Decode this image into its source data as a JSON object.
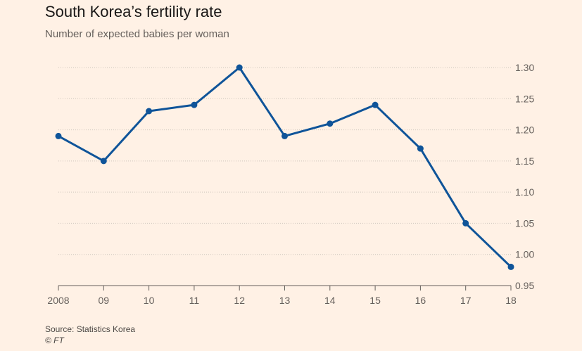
{
  "chart_data": {
    "type": "line",
    "title": "South Korea’s fertility rate",
    "subtitle": "Number of expected babies per woman",
    "categories": [
      "2008",
      "09",
      "10",
      "11",
      "12",
      "13",
      "14",
      "15",
      "16",
      "17",
      "18"
    ],
    "series": [
      {
        "name": "Fertility rate",
        "values": [
          1.19,
          1.15,
          1.23,
          1.24,
          1.3,
          1.19,
          1.21,
          1.24,
          1.17,
          1.05,
          0.98
        ]
      }
    ],
    "yticks": [
      "0.95",
      "1.00",
      "1.05",
      "1.10",
      "1.15",
      "1.20",
      "1.25",
      "1.30"
    ],
    "ylim": [
      0.95,
      1.3
    ],
    "xlabel": "",
    "ylabel": "",
    "grid": true,
    "axis_side": "right",
    "line_color": "#0f5499"
  },
  "footer": {
    "source": "Source: Statistics Korea",
    "copyright": "© FT"
  }
}
